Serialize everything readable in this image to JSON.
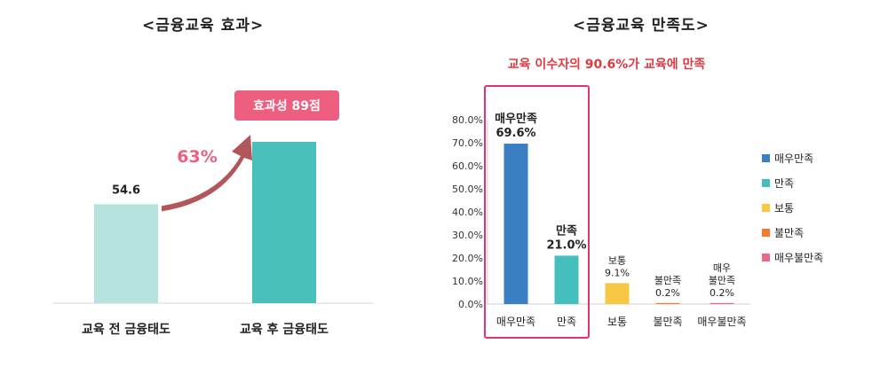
{
  "chart_data": [
    {
      "type": "bar",
      "title": "<금융교육 효과>",
      "categories": [
        "교육 전 금융태도",
        "교육 후 금융태도"
      ],
      "values": [
        54.6,
        89
      ],
      "value_labels": [
        "54.6",
        ""
      ],
      "callout": "효과성 89점",
      "increase_label": "63%",
      "colors": [
        "#b6e3de",
        "#48bfb8"
      ],
      "badge_color": "#ee5f7f",
      "arrow_color": "#a33a3f"
    },
    {
      "type": "bar",
      "title": "<금융교육 만족도>",
      "subtitle": "교육 이수자의 90.6%가 교육에 만족",
      "categories": [
        "매우만족",
        "만족",
        "보통",
        "불만족",
        "매우불만족"
      ],
      "values": [
        69.6,
        21.0,
        9.1,
        0.2,
        0.2
      ],
      "bar_labels": [
        [
          "매우만족",
          "69.6%"
        ],
        [
          "만족",
          "21.0%"
        ],
        [
          "보통",
          "9.1%"
        ],
        [
          "불만족",
          "0.2%"
        ],
        [
          "매우",
          "불만족",
          "0.2%"
        ]
      ],
      "ylim": [
        0,
        80
      ],
      "ytick_labels": [
        "0.0%",
        "10.0%",
        "20.0%",
        "30.0%",
        "40.0%",
        "50.0%",
        "60.0%",
        "70.0%",
        "80.0%"
      ],
      "legend": [
        "매우만족",
        "만족",
        "보통",
        "불만족",
        "매우불만족"
      ],
      "legend_position": "right",
      "colors": [
        "#3a7fc1",
        "#45bfbe",
        "#f8c744",
        "#ee7d33",
        "#e86a8a"
      ],
      "subtitle_color": "#e0393f",
      "highlight_color": "#e4336e"
    }
  ]
}
